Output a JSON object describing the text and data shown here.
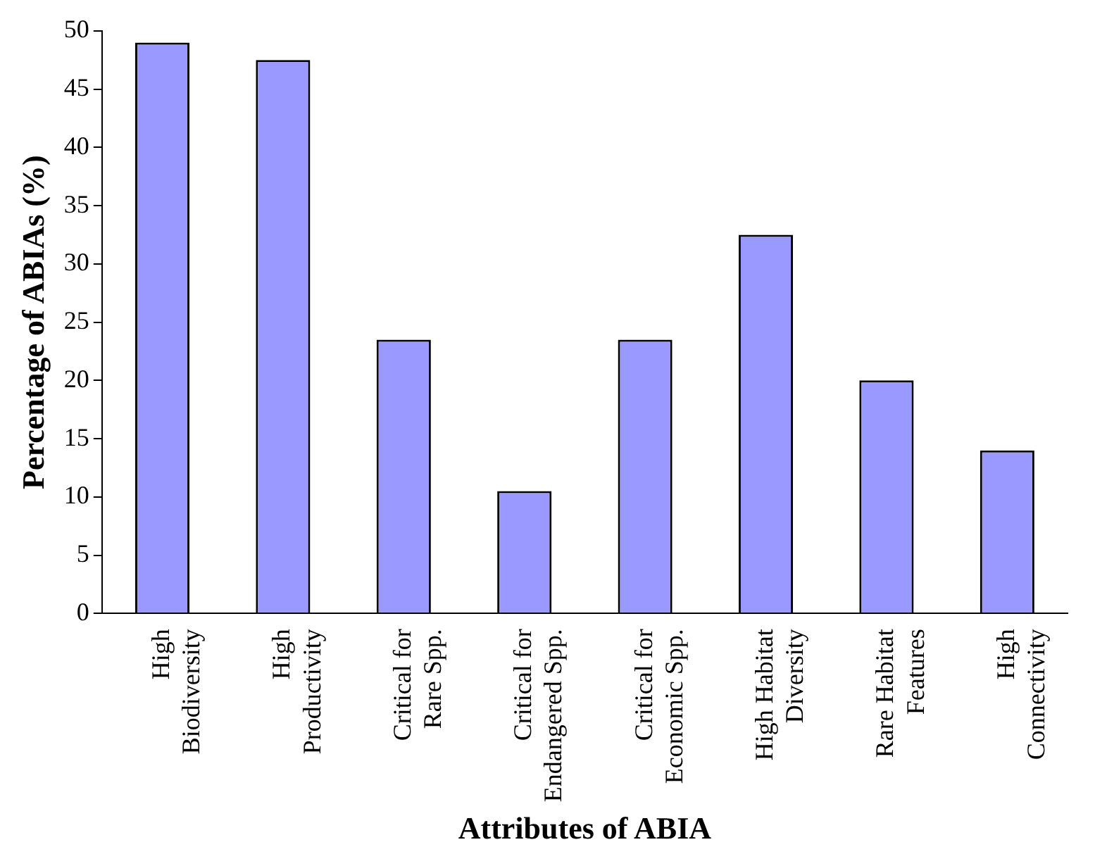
{
  "chart_data": {
    "type": "bar",
    "xlabel": "Attributes of ABIA",
    "ylabel": "Percentage of ABIAs (%)",
    "categories": [
      "High Biodiversity",
      "High Productivity",
      "Critical for Rare Spp.",
      "Critical for Endangered Spp.",
      "Critical for Economic Spp.",
      "High Habitat Diversity",
      "Rare Habitat Features",
      "High Connectivity"
    ],
    "values": [
      49,
      47.5,
      23.5,
      10.5,
      23.5,
      32.5,
      20,
      14
    ],
    "color": "#9999ff",
    "ylim": [
      0,
      50
    ],
    "yticks": [
      0,
      5,
      10,
      15,
      20,
      25,
      30,
      35,
      40,
      45,
      50
    ],
    "grid": false,
    "legend": false
  }
}
